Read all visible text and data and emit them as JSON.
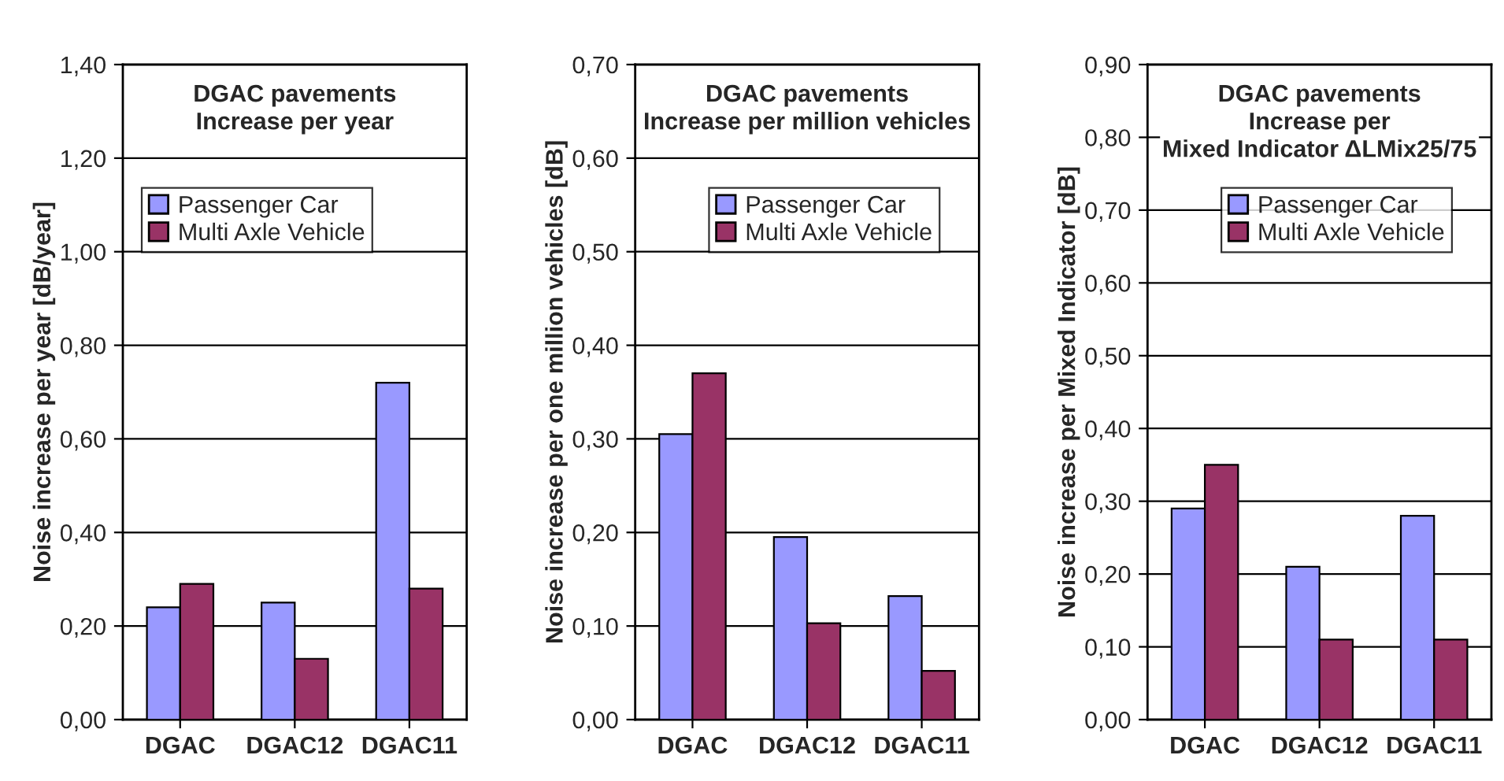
{
  "chart_data": [
    {
      "type": "bar",
      "title": "DGAC pavements\nIncrease per year",
      "ylabel": "Noise increase per year [dB/year]",
      "categories": [
        "DGAC",
        "DGAC12",
        "DGAC11"
      ],
      "series": [
        {
          "name": "Passenger Car",
          "color": "#9999ff",
          "values": [
            0.24,
            0.25,
            0.72
          ]
        },
        {
          "name": "Multi Axle Vehicle",
          "color": "#993366",
          "values": [
            0.29,
            0.13,
            0.28
          ]
        }
      ],
      "ylim": [
        0,
        1.4
      ],
      "yticks": [
        {
          "value": 0,
          "label": "0,00"
        },
        {
          "value": 0.2,
          "label": "0,20"
        },
        {
          "value": 0.4,
          "label": "0,40"
        },
        {
          "value": 0.6,
          "label": "0,60"
        },
        {
          "value": 0.8,
          "label": "0,80"
        },
        {
          "value": 1.0,
          "label": "1,00"
        },
        {
          "value": 1.2,
          "label": "1,20"
        },
        {
          "value": 1.4,
          "label": "1,40"
        }
      ],
      "grid": "y",
      "legend": "top left"
    },
    {
      "type": "bar",
      "title": "DGAC pavements\nIncrease per million vehicles",
      "ylabel": "Noise increase per one million vehicles [dB]",
      "categories": [
        "DGAC",
        "DGAC12",
        "DGAC11"
      ],
      "series": [
        {
          "name": "Passenger Car",
          "color": "#9999ff",
          "values": [
            0.305,
            0.195,
            0.132
          ]
        },
        {
          "name": "Multi Axle Vehicle",
          "color": "#993366",
          "values": [
            0.37,
            0.103,
            0.052
          ]
        }
      ],
      "ylim": [
        0,
        0.7
      ],
      "yticks": [
        {
          "value": 0,
          "label": "0,00"
        },
        {
          "value": 0.1,
          "label": "0,10"
        },
        {
          "value": 0.2,
          "label": "0,20"
        },
        {
          "value": 0.3,
          "label": "0,30"
        },
        {
          "value": 0.4,
          "label": "0,40"
        },
        {
          "value": 0.5,
          "label": "0,50"
        },
        {
          "value": 0.6,
          "label": "0,60"
        },
        {
          "value": 0.7,
          "label": "0,70"
        }
      ],
      "grid": "y",
      "legend": "top"
    },
    {
      "type": "bar",
      "title": "DGAC pavements\nIncrease per\nMixed Indicator ΔLMix25/75",
      "ylabel": "Noise increase per Mixed Indicator [dB]",
      "categories": [
        "DGAC",
        "DGAC12",
        "DGAC11"
      ],
      "series": [
        {
          "name": "Passenger Car",
          "color": "#9999ff",
          "values": [
            0.29,
            0.21,
            0.28
          ]
        },
        {
          "name": "Multi Axle Vehicle",
          "color": "#993366",
          "values": [
            0.35,
            0.11,
            0.11
          ]
        }
      ],
      "ylim": [
        0,
        0.9
      ],
      "yticks": [
        {
          "value": 0,
          "label": "0,00"
        },
        {
          "value": 0.1,
          "label": "0,10"
        },
        {
          "value": 0.2,
          "label": "0,20"
        },
        {
          "value": 0.3,
          "label": "0,30"
        },
        {
          "value": 0.4,
          "label": "0,40"
        },
        {
          "value": 0.5,
          "label": "0,50"
        },
        {
          "value": 0.6,
          "label": "0,60"
        },
        {
          "value": 0.7,
          "label": "0,70"
        },
        {
          "value": 0.8,
          "label": "0,80"
        },
        {
          "value": 0.9,
          "label": "0,90"
        }
      ],
      "grid": "y",
      "legend": "top"
    }
  ]
}
